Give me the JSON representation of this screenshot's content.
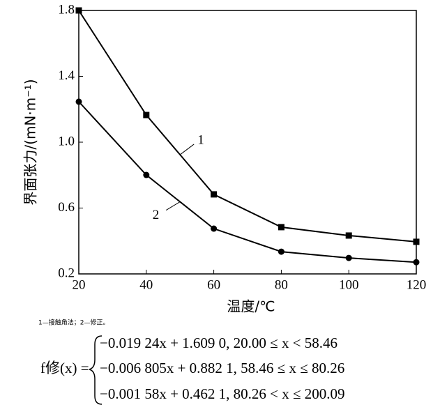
{
  "chart_data": {
    "type": "line",
    "x_label": "温度/℃",
    "y_label": "界面张力/(mN·m⁻¹)",
    "x": [
      20,
      40,
      60,
      80,
      100,
      120
    ],
    "series": [
      {
        "name": "1",
        "color": "#000000",
        "marker": "square",
        "values": [
          1.8,
          1.165,
          0.683,
          0.484,
          0.433,
          0.395
        ]
      },
      {
        "name": "2",
        "color": "#000000",
        "marker": "circle",
        "values": [
          1.246,
          0.801,
          0.475,
          0.335,
          0.297,
          0.271
        ]
      }
    ],
    "xlim": [
      20,
      120
    ],
    "xticks": [
      20,
      40,
      60,
      80,
      100,
      120
    ],
    "ylim": [
      0.2,
      1.8
    ],
    "yticks": [
      0.2,
      0.6,
      {
        "value": 1,
        "label": "1.0"
      },
      1.4,
      1.8
    ],
    "grid": false
  },
  "caption": "1—接触角法；2—修正。",
  "formula": {
    "lhs": "f修(x) =",
    "cases": [
      "−0.019 24x + 1.609 0,  20.00 ≤ x < 58.46",
      "−0.006 805x + 0.882 1,  58.46 ≤ x ≤ 80.26",
      "−0.001 58x + 0.462 1,  80.26 < x ≤ 200.09"
    ]
  }
}
